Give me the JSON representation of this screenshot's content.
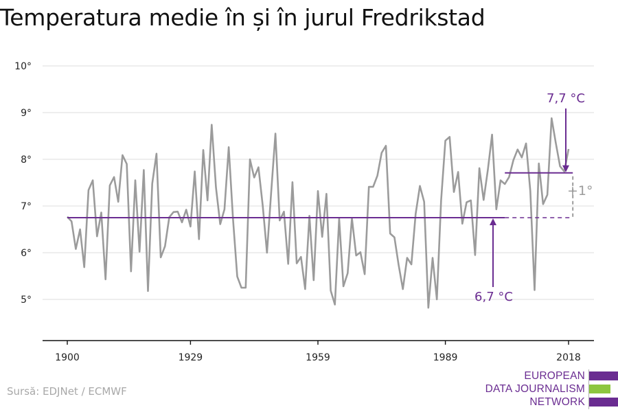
{
  "title": "Temperatura medie în și în jurul Fredrikstad",
  "source": "Sursă: EDJNet / ECMWF",
  "logo": {
    "lines": [
      "EUROPEAN",
      "DATA JOURNALISM",
      "NETWORK"
    ],
    "colors": {
      "purple": "#6a2c91",
      "green": "#8dc63f"
    }
  },
  "annotations": {
    "recent_label": "7,7 °C",
    "baseline_label": "6,7 °C",
    "delta_label": "+1°"
  },
  "colors": {
    "line": "#9b9b9b",
    "accent": "#6a2c91",
    "grid": "#dddddd",
    "axis": "#111111"
  },
  "chart_data": {
    "type": "line",
    "title": "Temperatura medie în și în jurul Fredrikstad",
    "xlabel": "",
    "ylabel": "",
    "xlim": [
      1900,
      2018
    ],
    "ylim": [
      4,
      10
    ],
    "x_ticks": [
      1900,
      1929,
      1959,
      1989,
      2018
    ],
    "x_tick_labels": [
      "1900",
      "1929",
      "1959",
      "1989",
      "2018"
    ],
    "y_ticks": [
      5,
      6,
      7,
      8,
      9,
      10
    ],
    "y_tick_labels": [
      "5°",
      "6°",
      "7°",
      "8°",
      "9°",
      "10°"
    ],
    "grid": true,
    "series": [
      {
        "x_start": 1900,
        "values": [
          6.77,
          6.67,
          6.08,
          6.5,
          5.69,
          7.34,
          7.55,
          6.35,
          6.86,
          5.43,
          7.44,
          7.62,
          7.09,
          8.09,
          7.9,
          5.6,
          7.55,
          6.02,
          7.77,
          5.18,
          7.48,
          8.12,
          5.9,
          6.14,
          6.76,
          6.87,
          6.88,
          6.65,
          6.92,
          6.56,
          7.74,
          6.29,
          8.2,
          7.12,
          8.74,
          7.4,
          6.61,
          6.93,
          8.26,
          6.73,
          5.49,
          5.25,
          5.25,
          8.0,
          7.61,
          7.83,
          7.01,
          6.0,
          7.29,
          8.55,
          6.69,
          6.88,
          5.76,
          7.51,
          5.77,
          5.91,
          5.22,
          6.79,
          5.41,
          7.32,
          6.34,
          7.26,
          5.19,
          4.89,
          6.73,
          5.28,
          5.56,
          6.74,
          5.94,
          6.01,
          5.54,
          7.41,
          7.41,
          7.65,
          8.14,
          8.29,
          6.41,
          6.33,
          5.74,
          5.22,
          5.89,
          5.75,
          6.83,
          7.43,
          7.09,
          4.82,
          5.89,
          5.0,
          7.12,
          8.4,
          8.48,
          7.3,
          7.73,
          6.62,
          7.08,
          7.12,
          5.95,
          7.81,
          7.13,
          7.78,
          8.53,
          6.93,
          7.55,
          7.47,
          7.62,
          7.98,
          8.21,
          8.04,
          8.34,
          7.32,
          5.2,
          7.91,
          7.04,
          7.24,
          8.88,
          8.35,
          7.85,
          7.74,
          8.22
        ]
      },
      {
        "name": "6,7 °C",
        "values_x": [
          1900,
          2019
        ],
        "value": 6.75
      },
      {
        "name": "7,7 °C",
        "values_x": [
          2003,
          2019
        ],
        "value": 7.71
      }
    ]
  }
}
